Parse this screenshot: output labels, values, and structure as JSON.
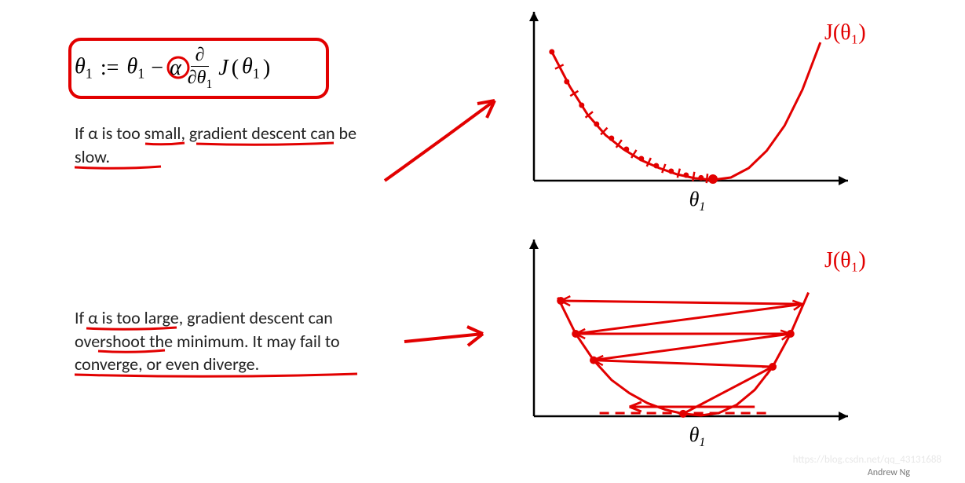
{
  "formula": {
    "lhs": "θ",
    "sub1": "1",
    "assign": ":=",
    "rhs1": "θ",
    "minus": "−",
    "alpha": "α",
    "partial_top": "∂",
    "partial_bot_sym": "∂θ",
    "partial_bot_sub": "1",
    "J": "J",
    "paren_open": "(",
    "arg": "θ",
    "arg_sub": "1",
    "paren_close": ")",
    "box_color": "#e20000",
    "alpha_circle_color": "#e20000"
  },
  "caption_small": "If α is too small, gradient descent can be slow.",
  "caption_large": "If α is too large, gradient descent can overshoot the minimum. It may fail to converge, or even diverge.",
  "colors": {
    "annotation": "#e20000",
    "axis": "#000000",
    "text": "#222222",
    "bg": "#ffffff"
  },
  "chart_top": {
    "type": "line",
    "x_axis_label": "θ",
    "x_axis_sub": "1",
    "y_label_hand": "J(θ₁)",
    "curve_color": "#e20000",
    "curve_width": 3,
    "xlim": [
      0,
      10
    ],
    "ylim": [
      0,
      10
    ],
    "parabola_points": [
      [
        0.6,
        8.2
      ],
      [
        1.2,
        6.0
      ],
      [
        1.8,
        4.2
      ],
      [
        2.4,
        2.9
      ],
      [
        3.0,
        2.0
      ],
      [
        3.6,
        1.3
      ],
      [
        4.2,
        0.8
      ],
      [
        4.8,
        0.4
      ],
      [
        5.4,
        0.15
      ],
      [
        6.0,
        0.05
      ],
      [
        6.6,
        0.2
      ],
      [
        7.2,
        0.8
      ],
      [
        7.8,
        1.9
      ],
      [
        8.4,
        3.5
      ],
      [
        9.0,
        5.8
      ],
      [
        9.6,
        8.8
      ]
    ],
    "descent_points": [
      [
        0.6,
        8.2
      ],
      [
        1.1,
        6.3
      ],
      [
        1.6,
        4.8
      ],
      [
        2.1,
        3.6
      ],
      [
        2.6,
        2.7
      ],
      [
        3.1,
        2.0
      ],
      [
        3.6,
        1.4
      ],
      [
        4.1,
        0.95
      ],
      [
        4.6,
        0.6
      ],
      [
        5.1,
        0.35
      ],
      [
        5.6,
        0.18
      ],
      [
        6.0,
        0.1
      ]
    ],
    "tick_len": 8
  },
  "chart_bottom": {
    "type": "line",
    "x_axis_label": "θ",
    "x_axis_sub": "1",
    "y_label_hand": "J(θ₁)",
    "curve_color": "#e20000",
    "curve_width": 3,
    "xlim": [
      0,
      10
    ],
    "ylim": [
      0,
      10
    ],
    "parabola_points": [
      [
        0.8,
        7.2
      ],
      [
        1.4,
        5.0
      ],
      [
        2.0,
        3.4
      ],
      [
        2.6,
        2.2
      ],
      [
        3.2,
        1.4
      ],
      [
        3.8,
        0.8
      ],
      [
        4.4,
        0.4
      ],
      [
        5.0,
        0.15
      ],
      [
        5.6,
        0.05
      ],
      [
        6.2,
        0.2
      ],
      [
        6.8,
        0.7
      ],
      [
        7.4,
        1.6
      ],
      [
        8.0,
        3.0
      ],
      [
        8.6,
        5.0
      ],
      [
        9.2,
        7.5
      ]
    ],
    "overshoot_path": [
      [
        5.0,
        0.15
      ],
      [
        8.0,
        3.0
      ],
      [
        2.0,
        3.4
      ],
      [
        8.6,
        5.0
      ],
      [
        1.4,
        5.0
      ],
      [
        9.0,
        6.8
      ],
      [
        0.9,
        7.0
      ]
    ],
    "overshoot_dots": [
      [
        5.0,
        0.15
      ],
      [
        8.0,
        3.0
      ],
      [
        2.0,
        3.4
      ],
      [
        8.6,
        5.0
      ],
      [
        1.4,
        5.0
      ],
      [
        0.9,
        7.0
      ]
    ]
  },
  "arrows": {
    "top_arrow_color": "#e20000",
    "bottom_arrow_color": "#e20000"
  },
  "credit": "Andrew Ng",
  "watermark": "https://blog.csdn.net/qq_43131688"
}
